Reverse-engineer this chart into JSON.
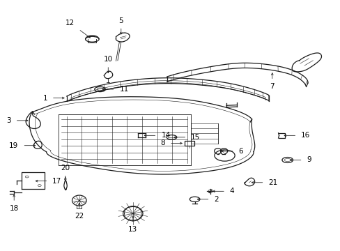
{
  "bg_color": "#ffffff",
  "line_color": "#1a1a1a",
  "text_color": "#000000",
  "fig_width": 4.89,
  "fig_height": 3.6,
  "dpi": 100,
  "label_data": {
    "1": [
      0.195,
      0.595,
      -1,
      0
    ],
    "2": [
      0.595,
      0.215,
      1,
      0
    ],
    "3": [
      0.095,
      0.51,
      -1,
      0
    ],
    "4": [
      0.63,
      0.22,
      1,
      0
    ],
    "5": [
      0.37,
      0.88,
      0,
      1
    ],
    "6": [
      0.64,
      0.38,
      1,
      0
    ],
    "7": [
      0.76,
      0.72,
      0,
      -1
    ],
    "8": [
      0.555,
      0.42,
      -1,
      0
    ],
    "9": [
      0.85,
      0.36,
      1,
      0
    ],
    "10": [
      0.31,
      0.72,
      0,
      -1
    ],
    "11": [
      0.305,
      0.62,
      1,
      0
    ],
    "12": [
      0.27,
      0.87,
      0,
      1
    ],
    "13": [
      0.39,
      0.095,
      0,
      -1
    ],
    "14": [
      0.42,
      0.46,
      1,
      0
    ],
    "15": [
      0.51,
      0.45,
      1,
      0
    ],
    "16": [
      0.84,
      0.455,
      1,
      0
    ],
    "17": [
      0.095,
      0.245,
      1,
      0
    ],
    "18": [
      0.04,
      0.21,
      0,
      -1
    ],
    "19": [
      0.095,
      0.36,
      -1,
      0
    ],
    "20": [
      0.19,
      0.195,
      0,
      -1
    ],
    "21": [
      0.72,
      0.265,
      1,
      0
    ],
    "22": [
      0.23,
      0.165,
      0,
      -1
    ]
  }
}
